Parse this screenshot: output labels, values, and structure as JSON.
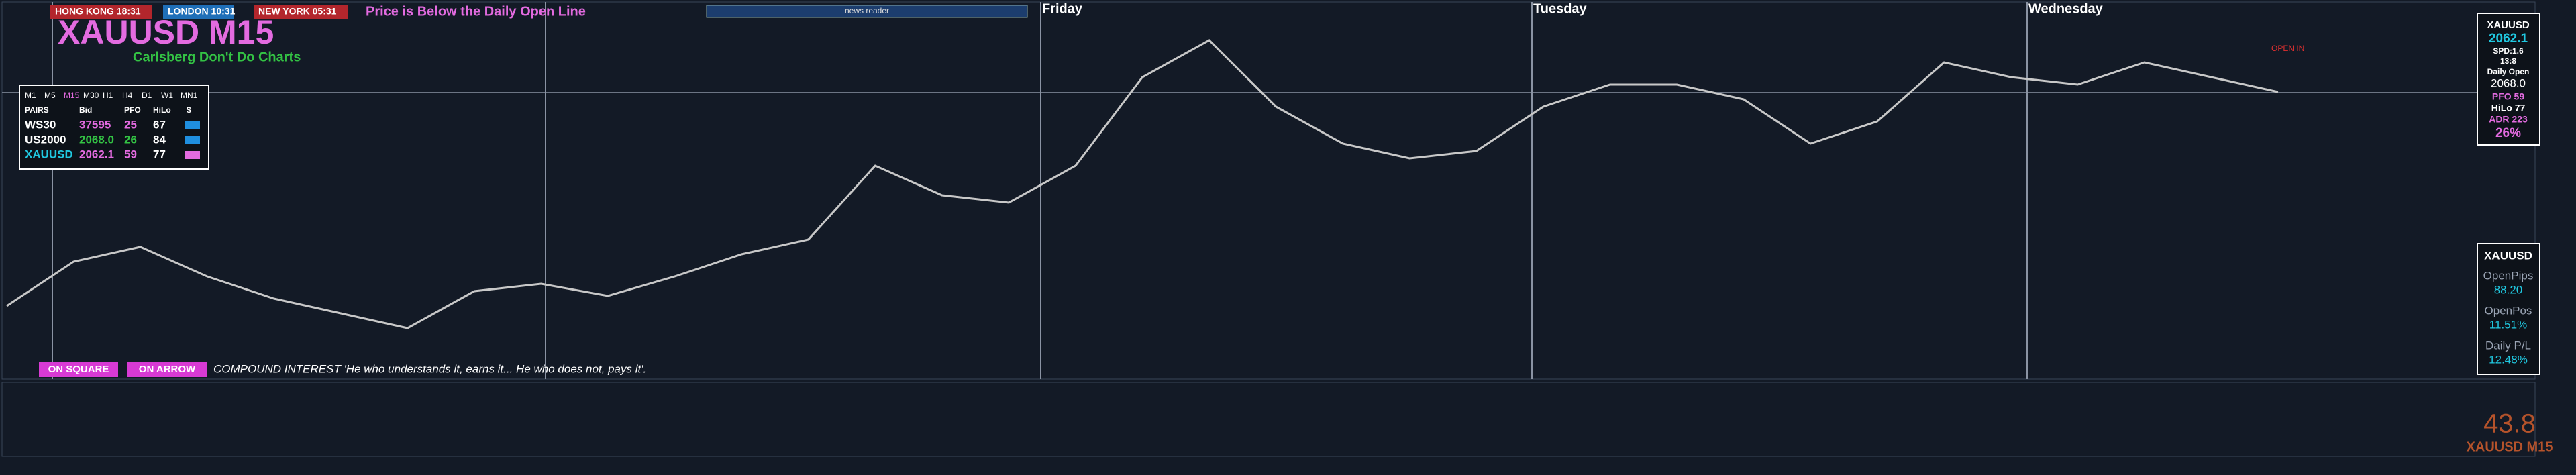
{
  "window": {
    "title_symbol": "XAUUSD M15",
    "subtitle": "Carlsberg Don't Do Charts",
    "sessions": [
      "HONG KONG 18:31",
      "LONDON 10:31",
      "NEW YORK 05:31"
    ],
    "alert": "Price is Below the Daily Open Line",
    "news": "news reader",
    "days": [
      "Friday",
      "Tuesday",
      "Wednesday"
    ],
    "buttons": [
      "ON SQUARE",
      "ON ARROW"
    ],
    "quote": "COMPOUND INTEREST 'He who understands it, earns it... He who does not, pays it'.",
    "open_tag": "OPEN IN"
  },
  "table": {
    "timeframes": [
      "M1",
      "M5",
      "M15",
      "M30",
      "H1",
      "H4",
      "D1",
      "W1",
      "MN1"
    ],
    "header": [
      "PAIRS",
      "Bid",
      "PFO",
      "HiLo",
      "$"
    ],
    "rows": [
      [
        "WS30",
        "37595",
        "25",
        "67"
      ],
      [
        "US2000",
        "2068.0",
        "26",
        "84"
      ],
      [
        "XAUUSD",
        "2062.1",
        "59",
        "77"
      ]
    ]
  },
  "info": {
    "symbol": "XAUUSD",
    "bid": "2062.1",
    "spread": "SPD:1.6",
    "timer": "13:8",
    "daily_open_label": "Daily Open",
    "daily_open": "2068.0",
    "lines": [
      "PFO 59",
      "HiLo 77",
      "ADR 223"
    ],
    "pct": "26%"
  },
  "account": {
    "symbol": "XAUUSD",
    "items": [
      [
        "OpenPips",
        "88.20"
      ],
      [
        "OpenPos",
        "11.51%"
      ],
      [
        "Daily P/L",
        "12.48%"
      ]
    ]
  },
  "indicator": {
    "value": "43.8",
    "label": "XAUUSD M15"
  },
  "chart_data": {
    "type": "line",
    "color": "#c8c8c8",
    "ylim": [
      2022,
      2074
    ],
    "values": [
      2030.4,
      2037.0,
      2039.2,
      2034.8,
      2031.5,
      2029.3,
      2027.1,
      2032.6,
      2033.7,
      2031.9,
      2034.8,
      2038.1,
      2040.3,
      2051.3,
      2046.9,
      2045.8,
      2051.3,
      2064.5,
      2070.0,
      2060.1,
      2054.6,
      2052.4,
      2053.5,
      2060.1,
      2063.4,
      2063.4,
      2061.2,
      2054.6,
      2057.9,
      2066.7,
      2064.5,
      2063.4,
      2066.7,
      2064.5,
      2062.3
    ]
  }
}
